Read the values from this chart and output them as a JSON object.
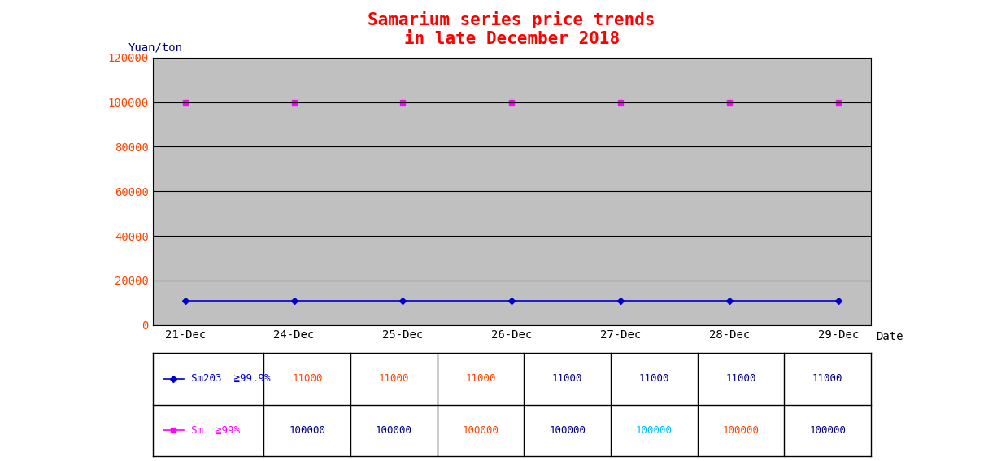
{
  "title_line1": "Samarium series price trends",
  "title_line2": "in late December 2018",
  "title_color": "#FF0000",
  "ylabel": "Yuan/ton",
  "xlabel": "Date",
  "dates": [
    "21-Dec",
    "24-Dec",
    "25-Dec",
    "26-Dec",
    "27-Dec",
    "28-Dec",
    "29-Dec"
  ],
  "series": [
    {
      "label": "Sm203  ≧99.9%",
      "values": [
        11000,
        11000,
        11000,
        11000,
        11000,
        11000,
        11000
      ],
      "color": "#0000CD",
      "marker": "D",
      "markersize": 4,
      "linewidth": 1.2
    },
    {
      "label": "Sm  ≧99%",
      "values": [
        100000,
        100000,
        100000,
        100000,
        100000,
        100000,
        100000
      ],
      "color": "#FF00FF",
      "marker": "s",
      "markersize": 4,
      "linewidth": 1.2
    }
  ],
  "ylim": [
    0,
    120000
  ],
  "yticks": [
    0,
    20000,
    40000,
    60000,
    80000,
    100000,
    120000
  ],
  "plot_bg_color": "#C0C0C0",
  "fig_bg_color": "#FFFFFF",
  "grid_color": "#000000",
  "table_border_color": "#000000",
  "table_values": [
    [
      "11000",
      "11000",
      "11000",
      "11000",
      "11000",
      "11000",
      "11000"
    ],
    [
      "100000",
      "100000",
      "100000",
      "100000",
      "100000",
      "100000",
      "100000"
    ]
  ],
  "table_value_colors": [
    [
      "#FF4500",
      "#FF4500",
      "#FF4500",
      "#000080",
      "#000080",
      "#000080",
      "#000080"
    ],
    [
      "#000080",
      "#000080",
      "#FF4500",
      "#000080",
      "#00BFFF",
      "#FF4500",
      "#000080"
    ]
  ],
  "ytick_color": "#FF4500",
  "ylabel_color": "#000080",
  "font_family": "monospace",
  "title_fontsize": 15
}
